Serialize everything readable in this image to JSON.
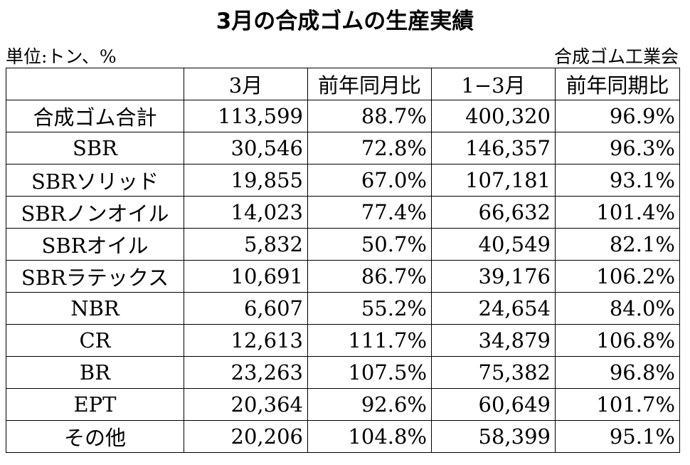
{
  "title": "3月の合成ゴムの生産実績",
  "unit": "単位:トン、%",
  "source": "合成ゴム工業会",
  "table": {
    "header": [
      "3月",
      "前年同月比",
      "1−3月",
      "前年同期比"
    ],
    "rows": [
      [
        "合成ゴム合計",
        "113,599",
        "88.7%",
        "400,320",
        "96.9%"
      ],
      [
        "SBR",
        "30,546",
        "72.8%",
        "146,357",
        "96.3%"
      ],
      [
        "SBRソリッド",
        "19,855",
        "67.0%",
        "107,181",
        "93.1%"
      ],
      [
        "SBRノンオイル",
        "14,023",
        "77.4%",
        "66,632",
        "101.4%"
      ],
      [
        "SBRオイル",
        "5,832",
        "50.7%",
        "40,549",
        "82.1%"
      ],
      [
        "SBRラテックス",
        "10,691",
        "86.7%",
        "39,176",
        "106.2%"
      ],
      [
        "NBR",
        "6,607",
        "55.2%",
        "24,654",
        "84.0%"
      ],
      [
        "CR",
        "12,613",
        "111.7%",
        "34,879",
        "106.8%"
      ],
      [
        "BR",
        "23,263",
        "107.5%",
        "75,382",
        "96.8%"
      ],
      [
        "EPT",
        "20,364",
        "92.6%",
        "60,649",
        "101.7%"
      ],
      [
        "その他",
        "20,206",
        "104.8%",
        "58,399",
        "95.1%"
      ]
    ]
  }
}
